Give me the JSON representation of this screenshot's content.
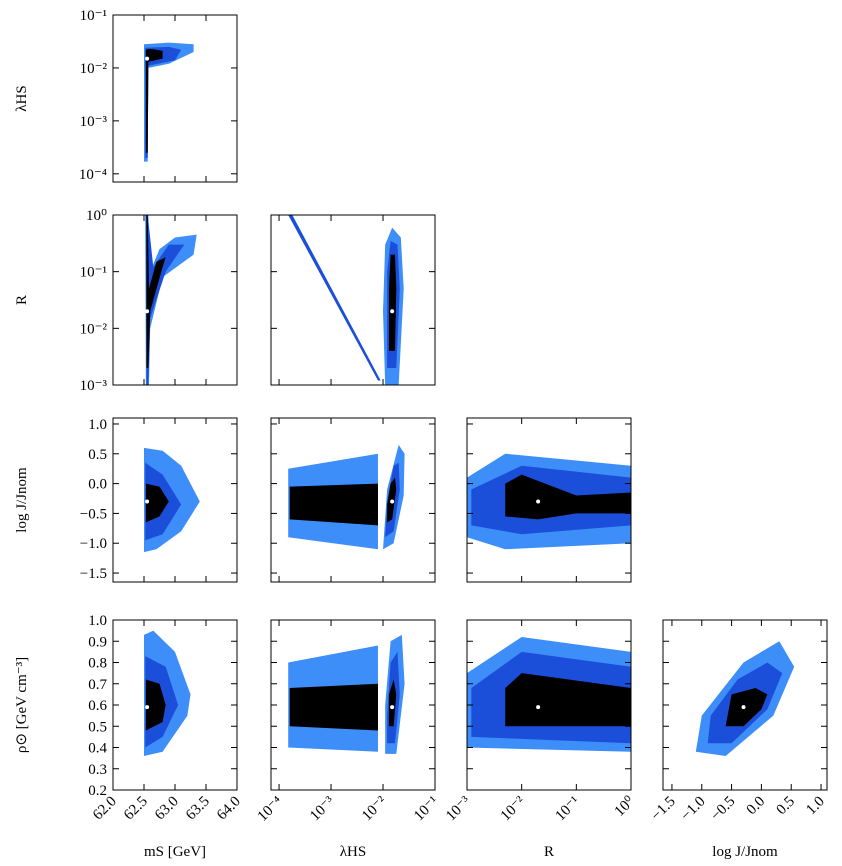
{
  "chart_data": {
    "type": "corner",
    "variables": [
      {
        "label": "mS [GeV]",
        "log": false,
        "lim": [
          62,
          64
        ],
        "ticks": [
          {
            "value": 62,
            "label": "62.0"
          },
          62.5,
          {
            "value": 63,
            "label": "63.0"
          },
          63.5,
          {
            "value": 64,
            "label": "64.0"
          }
        ]
      },
      {
        "label": "λHS",
        "log": true,
        "lim": [
          7e-05,
          0.1
        ],
        "ticks": [
          {
            "value": 0.0001,
            "label": "10⁻⁴"
          },
          {
            "value": 0.001,
            "label": "10⁻³"
          },
          {
            "value": 0.01,
            "label": "10⁻²"
          },
          {
            "value": 0.1,
            "label": "10⁻¹"
          }
        ]
      },
      {
        "label": "R",
        "log": true,
        "lim": [
          0.001,
          1
        ],
        "ticks": [
          {
            "value": 0.001,
            "label": "10⁻³"
          },
          {
            "value": 0.01,
            "label": "10⁻²"
          },
          {
            "value": 0.1,
            "label": "10⁻¹"
          },
          {
            "value": 1,
            "label": "10⁰"
          }
        ]
      },
      {
        "label": "log J/Jnom",
        "log": false,
        "lim": [
          -1.65,
          1.1
        ],
        "ticks": [
          {
            "value": -1.5,
            "label": "−1.5"
          },
          {
            "value": -1,
            "label": "−1.0"
          },
          {
            "value": -0.5,
            "label": "−0.5"
          },
          {
            "value": 0,
            "label": "0.0"
          },
          0.5,
          {
            "value": 1,
            "label": "1.0"
          }
        ]
      },
      {
        "label": "ρ⊙ [GeV cm⁻³]",
        "log": false,
        "lim": [
          0.2,
          1.0
        ],
        "ticks": [
          0.2,
          0.3,
          0.4,
          0.5,
          0.6,
          0.7,
          0.8,
          0.9,
          {
            "value": 1,
            "label": "1.0"
          }
        ]
      }
    ],
    "rows": [
      [
        {
          "best_fit": {
            "x": 62.55,
            "y": 0.015
          },
          "regions": [
            {
              "color": "#3d8ef8",
              "x": [
                62.5,
                62.56,
                62.57,
                62.9,
                63.3,
                63.3,
                62.9,
                62.5
              ],
              "y": [
                0.00017,
                0.00017,
                0.01,
                0.012,
                0.02,
                0.028,
                0.03,
                0.028
              ]
            },
            {
              "color": "#1c4fd9",
              "x": [
                62.52,
                62.56,
                62.57,
                63.0,
                63.1,
                62.9,
                62.52
              ],
              "y": [
                0.0002,
                0.0002,
                0.011,
                0.014,
                0.022,
                0.025,
                0.024
              ]
            },
            {
              "color": "#000000",
              "x": [
                62.53,
                62.56,
                62.57,
                62.8,
                62.8,
                62.6,
                62.53
              ],
              "y": [
                0.00025,
                0.00025,
                0.013,
                0.015,
                0.021,
                0.023,
                0.022
              ]
            }
          ]
        }
      ],
      [
        {
          "best_fit": {
            "x": 62.55,
            "y": 0.02
          },
          "regions": [
            {
              "color": "#3d8ef8",
              "x": [
                62.53,
                62.58,
                62.6,
                62.8,
                63.3,
                63.35,
                63.0,
                62.75,
                62.6,
                62.57,
                62.52
              ],
              "y": [
                0.001,
                0.001,
                0.01,
                0.08,
                0.2,
                0.45,
                0.4,
                0.25,
                0.1,
                1,
                1
              ]
            },
            {
              "color": "#1c4fd9",
              "x": [
                62.54,
                62.57,
                62.6,
                62.85,
                63.15,
                62.9,
                62.65,
                62.56,
                62.53
              ],
              "y": [
                0.001,
                0.001,
                0.015,
                0.1,
                0.3,
                0.3,
                0.12,
                1,
                1
              ]
            },
            {
              "color": "#000000",
              "x": [
                62.54,
                62.57,
                62.6,
                62.8,
                62.85,
                62.7,
                62.58,
                62.56,
                62.54
              ],
              "y": [
                0.002,
                0.002,
                0.02,
                0.12,
                0.18,
                0.15,
                0.05,
                1,
                1
              ]
            }
          ]
        },
        {
          "best_fit": {
            "x": 0.015,
            "y": 0.02
          },
          "regions": [
            {
              "color": "#1c4fd9",
              "x": [
                0.00015,
                0.00018,
                0.009,
                0.008
              ],
              "y": [
                1,
                1,
                0.0012,
                0.0012
              ]
            },
            {
              "color": "#3d8ef8",
              "x": [
                0.011,
                0.02,
                0.025,
                0.022,
                0.015,
                0.011,
                0.01
              ],
              "y": [
                0.001,
                0.001,
                0.05,
                0.4,
                0.6,
                0.3,
                0.02
              ]
            },
            {
              "color": "#1c4fd9",
              "x": [
                0.012,
                0.018,
                0.021,
                0.019,
                0.014,
                0.012
              ],
              "y": [
                0.002,
                0.002,
                0.05,
                0.3,
                0.35,
                0.1
              ]
            },
            {
              "color": "#000000",
              "x": [
                0.013,
                0.017,
                0.018,
                0.017,
                0.014,
                0.013
              ],
              "y": [
                0.004,
                0.004,
                0.05,
                0.2,
                0.2,
                0.05
              ]
            }
          ]
        }
      ],
      [
        {
          "best_fit": {
            "x": 62.55,
            "y": -0.3
          },
          "regions": [
            {
              "color": "#3d8ef8",
              "x": [
                62.5,
                62.7,
                63.1,
                63.4,
                63.1,
                62.8,
                62.5
              ],
              "y": [
                -1.15,
                -1.1,
                -0.8,
                -0.3,
                0.3,
                0.55,
                0.6
              ]
            },
            {
              "color": "#1c4fd9",
              "x": [
                62.52,
                62.8,
                63.1,
                62.8,
                62.52
              ],
              "y": [
                -0.95,
                -0.85,
                -0.35,
                0.15,
                0.35
              ]
            },
            {
              "color": "#000000",
              "x": [
                62.53,
                62.75,
                62.9,
                62.75,
                62.53
              ],
              "y": [
                -0.65,
                -0.55,
                -0.3,
                -0.05,
                0.0
              ]
            }
          ]
        },
        {
          "best_fit": {
            "x": 0.015,
            "y": -0.3
          },
          "regions": [
            {
              "color": "#3d8ef8",
              "x": [
                0.00015,
                0.008,
                0.008,
                0.00015
              ],
              "y": [
                -0.9,
                -1.1,
                0.5,
                0.25
              ]
            },
            {
              "color": "#000000",
              "x": [
                0.00016,
                0.008,
                0.008,
                0.00016
              ],
              "y": [
                -0.6,
                -0.7,
                0.0,
                -0.05
              ]
            },
            {
              "color": "#3d8ef8",
              "x": [
                0.01,
                0.016,
                0.025,
                0.026,
                0.02,
                0.012
              ],
              "y": [
                -1.1,
                -1.0,
                -0.2,
                0.5,
                0.65,
                -0.1
              ]
            },
            {
              "color": "#1c4fd9",
              "x": [
                0.011,
                0.016,
                0.021,
                0.02,
                0.016,
                0.012
              ],
              "y": [
                -0.9,
                -0.8,
                -0.1,
                0.35,
                0.3,
                -0.3
              ]
            },
            {
              "color": "#000000",
              "x": [
                0.012,
                0.015,
                0.018,
                0.017,
                0.014,
                0.012
              ],
              "y": [
                -0.65,
                -0.6,
                -0.1,
                0.1,
                0.0,
                -0.35
              ]
            }
          ]
        },
        {
          "best_fit": {
            "x": 0.02,
            "y": -0.3
          },
          "regions": [
            {
              "color": "#3d8ef8",
              "x": [
                0.001,
                0.005,
                1,
                1,
                0.005,
                0.001
              ],
              "y": [
                -0.9,
                -1.1,
                -1.0,
                0.3,
                0.5,
                0.1
              ]
            },
            {
              "color": "#1c4fd9",
              "x": [
                0.0012,
                0.01,
                1,
                1,
                0.01,
                0.0012
              ],
              "y": [
                -0.7,
                -0.85,
                -0.7,
                0.1,
                0.3,
                -0.1
              ]
            },
            {
              "color": "#000000",
              "x": [
                0.005,
                0.02,
                0.1,
                1,
                1,
                0.1,
                0.01,
                0.005
              ],
              "y": [
                -0.55,
                -0.6,
                -0.5,
                -0.5,
                -0.15,
                -0.2,
                0.15,
                0.0
              ]
            }
          ]
        }
      ],
      [
        {
          "best_fit": {
            "x": 62.55,
            "y": 0.59
          },
          "regions": [
            {
              "color": "#3d8ef8",
              "x": [
                62.5,
                62.8,
                63.2,
                63.25,
                63.0,
                62.65,
                62.5
              ],
              "y": [
                0.36,
                0.38,
                0.55,
                0.65,
                0.85,
                0.95,
                0.93
              ]
            },
            {
              "color": "#1c4fd9",
              "x": [
                62.52,
                62.8,
                63.05,
                62.85,
                62.52
              ],
              "y": [
                0.4,
                0.45,
                0.6,
                0.78,
                0.83
              ]
            },
            {
              "color": "#000000",
              "x": [
                62.53,
                62.8,
                62.85,
                62.75,
                62.53
              ],
              "y": [
                0.48,
                0.52,
                0.6,
                0.7,
                0.72
              ]
            }
          ]
        },
        {
          "best_fit": {
            "x": 0.015,
            "y": 0.59
          },
          "regions": [
            {
              "color": "#3d8ef8",
              "x": [
                0.00015,
                0.008,
                0.008,
                0.00015
              ],
              "y": [
                0.4,
                0.38,
                0.88,
                0.8
              ]
            },
            {
              "color": "#000000",
              "x": [
                0.00016,
                0.008,
                0.008,
                0.00016
              ],
              "y": [
                0.5,
                0.48,
                0.7,
                0.68
              ]
            },
            {
              "color": "#3d8ef8",
              "x": [
                0.011,
                0.018,
                0.026,
                0.023,
                0.014,
                0.011
              ],
              "y": [
                0.37,
                0.37,
                0.7,
                0.93,
                0.9,
                0.6
              ]
            },
            {
              "color": "#1c4fd9",
              "x": [
                0.012,
                0.017,
                0.021,
                0.019,
                0.014,
                0.012
              ],
              "y": [
                0.42,
                0.42,
                0.65,
                0.85,
                0.8,
                0.55
              ]
            },
            {
              "color": "#000000",
              "x": [
                0.013,
                0.016,
                0.018,
                0.016,
                0.013
              ],
              "y": [
                0.5,
                0.5,
                0.65,
                0.72,
                0.65
              ]
            }
          ]
        },
        {
          "best_fit": {
            "x": 0.02,
            "y": 0.59
          },
          "regions": [
            {
              "color": "#3d8ef8",
              "x": [
                0.001,
                1,
                1,
                0.01,
                0.001
              ],
              "y": [
                0.4,
                0.38,
                0.85,
                0.92,
                0.75
              ]
            },
            {
              "color": "#1c4fd9",
              "x": [
                0.0012,
                1,
                1,
                0.01,
                0.0012
              ],
              "y": [
                0.45,
                0.42,
                0.78,
                0.85,
                0.68
              ]
            },
            {
              "color": "#000000",
              "x": [
                0.005,
                1,
                1,
                0.01,
                0.005
              ],
              "y": [
                0.5,
                0.5,
                0.68,
                0.75,
                0.68
              ]
            }
          ]
        },
        {
          "best_fit": {
            "x": -0.3,
            "y": 0.59
          },
          "regions": [
            {
              "color": "#3d8ef8",
              "x": [
                -1.1,
                -0.6,
                0.2,
                0.55,
                0.3,
                -0.3,
                -1.0
              ],
              "y": [
                0.38,
                0.36,
                0.55,
                0.78,
                0.9,
                0.8,
                0.55
              ]
            },
            {
              "color": "#1c4fd9",
              "x": [
                -0.9,
                -0.5,
                0.1,
                0.35,
                0.1,
                -0.4,
                -0.85
              ],
              "y": [
                0.42,
                0.42,
                0.58,
                0.75,
                0.8,
                0.72,
                0.55
              ]
            },
            {
              "color": "#000000",
              "x": [
                -0.6,
                -0.3,
                0.0,
                0.1,
                -0.1,
                -0.5
              ],
              "y": [
                0.5,
                0.5,
                0.58,
                0.65,
                0.68,
                0.65
              ]
            }
          ]
        }
      ]
    ]
  }
}
